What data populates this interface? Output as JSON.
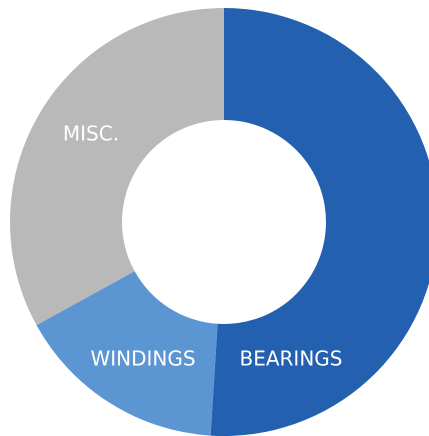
{
  "chart_data": {
    "type": "donut",
    "categories": [
      "BEARINGS",
      "WINDINGS",
      "MISC."
    ],
    "values": [
      51,
      16,
      33
    ],
    "colors": [
      "#2360b0",
      "#5b96d3",
      "#b9b9b9"
    ],
    "start_angle": 0,
    "direction": "clockwise"
  }
}
